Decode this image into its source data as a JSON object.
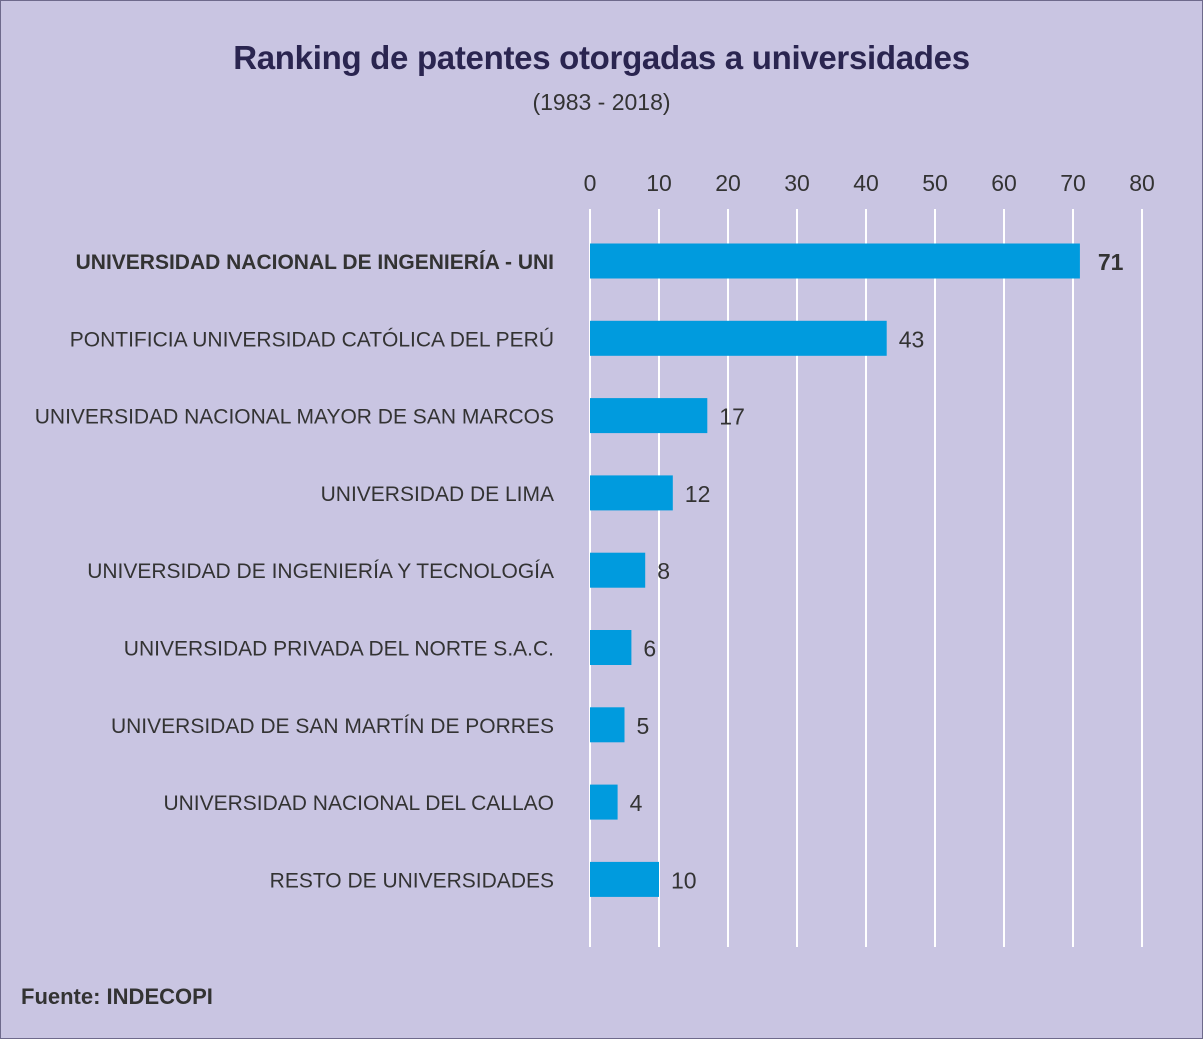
{
  "chart_data": {
    "type": "bar",
    "orientation": "horizontal",
    "title": "Ranking de patentes otorgadas a universidades",
    "subtitle": "(1983 - 2018)",
    "categories": [
      "UNIVERSIDAD NACIONAL DE INGENIERÍA - UNI",
      "PONTIFICIA UNIVERSIDAD CATÓLICA DEL PERÚ",
      "UNIVERSIDAD NACIONAL MAYOR DE SAN MARCOS",
      "UNIVERSIDAD DE LIMA",
      "UNIVERSIDAD DE INGENIERÍA Y TECNOLOGÍA",
      "UNIVERSIDAD PRIVADA DEL NORTE S.A.C.",
      "UNIVERSIDAD DE SAN MARTÍN DE PORRES",
      "UNIVERSIDAD NACIONAL DEL CALLAO",
      "RESTO DE UNIVERSIDADES"
    ],
    "values": [
      71,
      43,
      17,
      12,
      8,
      6,
      5,
      4,
      10
    ],
    "highlighted_index": 0,
    "xlim": [
      0,
      80
    ],
    "x_ticks": [
      0,
      10,
      20,
      30,
      40,
      50,
      60,
      70,
      80
    ],
    "x_axis_position": "top",
    "grid": true,
    "legend": "none",
    "bar_color": "#009bde",
    "grid_color": "#ffffff",
    "background_color": "#c9c5e2",
    "title_color": "#2a2550"
  },
  "source": "Fuente: INDECOPI"
}
